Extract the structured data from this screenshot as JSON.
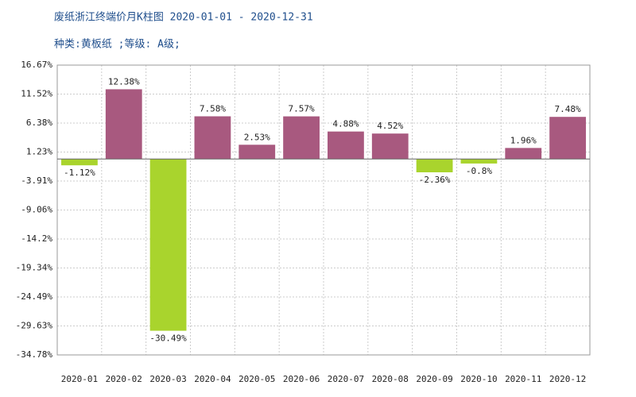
{
  "chart_data": {
    "type": "bar",
    "title": "废纸浙江终端价月K柱图 2020-01-01 - 2020-12-31",
    "subtitle": "种类:黄板纸 ;等级: A级;",
    "categories": [
      "2020-01",
      "2020-02",
      "2020-03",
      "2020-04",
      "2020-05",
      "2020-06",
      "2020-07",
      "2020-08",
      "2020-09",
      "2020-10",
      "2020-11",
      "2020-12"
    ],
    "values": [
      -1.12,
      12.38,
      -30.49,
      7.58,
      2.53,
      7.57,
      4.88,
      4.52,
      -2.36,
      -0.8,
      1.96,
      7.48
    ],
    "value_labels": [
      "-1.12%",
      "12.38%",
      "-30.49%",
      "7.58%",
      "2.53%",
      "7.57%",
      "4.88%",
      "4.52%",
      "-2.36%",
      "-0.8%",
      "1.96%",
      "7.48%"
    ],
    "positive_color": "#a8597f",
    "negative_color": "#a9d42d",
    "ylim": [
      -34.78,
      16.67
    ],
    "yticks": [
      {
        "value": 16.67,
        "label": "16.67%"
      },
      {
        "value": 11.52,
        "label": "11.52%"
      },
      {
        "value": 6.38,
        "label": "6.38%"
      },
      {
        "value": 1.23,
        "label": "1.23%"
      },
      {
        "value": -3.91,
        "label": "-3.91%"
      },
      {
        "value": -9.06,
        "label": "-9.06%"
      },
      {
        "value": -14.2,
        "label": "-14.2%"
      },
      {
        "value": -19.34,
        "label": "-19.34%"
      },
      {
        "value": -24.49,
        "label": "-24.49%"
      },
      {
        "value": -29.63,
        "label": "-29.63%"
      },
      {
        "value": -34.78,
        "label": "-34.78%"
      }
    ],
    "grid": true
  }
}
